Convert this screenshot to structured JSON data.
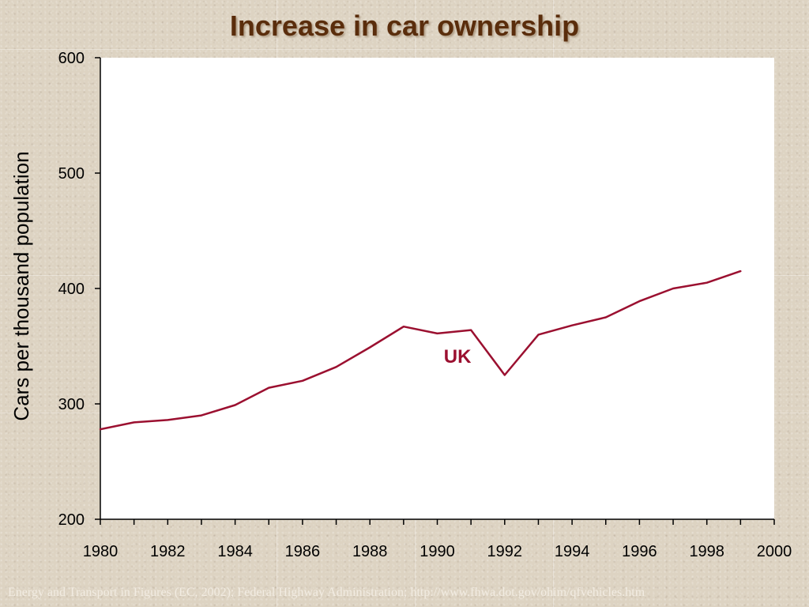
{
  "chart_data": {
    "type": "line",
    "title": "Increase in car ownership",
    "ylabel": "Cars per thousand population",
    "xlabel": "",
    "xlim": [
      1980,
      2000
    ],
    "ylim": [
      200,
      600
    ],
    "x_ticks": [
      "1980",
      "1982",
      "1984",
      "1986",
      "1988",
      "1990",
      "1992",
      "1994",
      "1996",
      "1998",
      "2000"
    ],
    "y_ticks": [
      "200",
      "300",
      "400",
      "500",
      "600"
    ],
    "grid": false,
    "series": [
      {
        "name": "UK",
        "color": "#9b1030",
        "x": [
          1980,
          1981,
          1982,
          1983,
          1984,
          1985,
          1986,
          1987,
          1988,
          1989,
          1990,
          1991,
          1992,
          1993,
          1994,
          1995,
          1996,
          1997,
          1998,
          1999
        ],
        "y": [
          278,
          284,
          286,
          290,
          299,
          314,
          320,
          332,
          349,
          367,
          361,
          364,
          325,
          360,
          368,
          375,
          389,
          400,
          405,
          415
        ]
      }
    ]
  },
  "source_note": "Energy and Transport in Figures (EC, 2002); Federal Highway Administration; http://www.fhwa.dot.gov/ohim/qfvehicles.htm"
}
